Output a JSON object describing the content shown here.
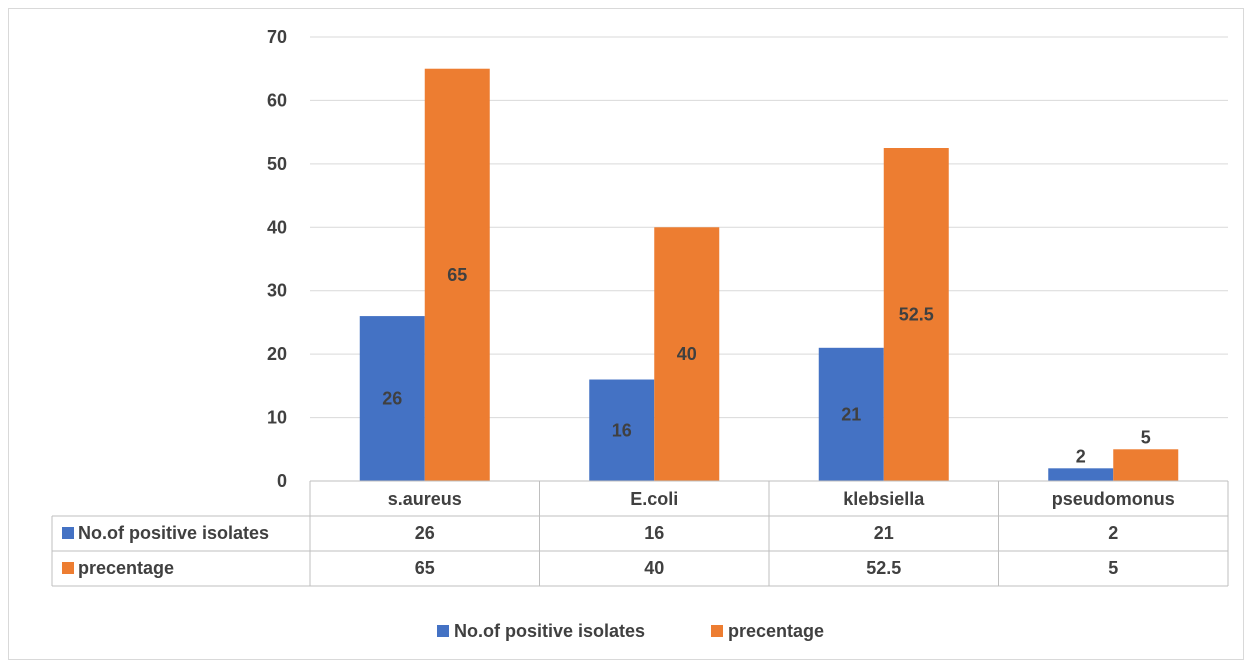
{
  "chart_data": {
    "type": "bar",
    "categories": [
      "s.aureus",
      "E.coli",
      "klebsiella",
      "pseudomonus"
    ],
    "series": [
      {
        "name": "No.of positive isolates",
        "values": [
          26,
          16,
          21,
          2
        ],
        "color": "#4472C4"
      },
      {
        "name": "precentage",
        "values": [
          65,
          40,
          52.5,
          5
        ],
        "color": "#ED7D31"
      }
    ],
    "ylim": [
      0,
      70
    ],
    "yticks": [
      0,
      10,
      20,
      30,
      40,
      50,
      60,
      70
    ],
    "grid": true,
    "data_table": true,
    "legend_position": "bottom"
  }
}
